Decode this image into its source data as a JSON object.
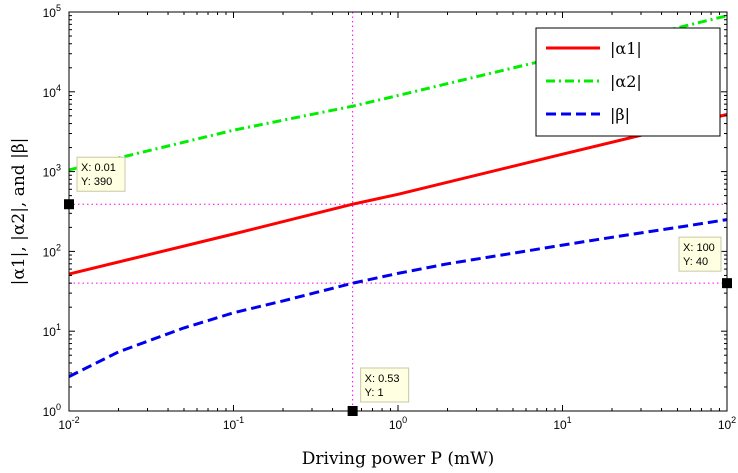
{
  "chart_data": {
    "type": "line",
    "xlabel": "Driving power P (mW)",
    "ylabel": "|α1|, |α2|, and |β|",
    "xscale": "log",
    "yscale": "log",
    "xlim": [
      0.01,
      100
    ],
    "ylim": [
      1,
      100000
    ],
    "x_ticks": [
      "10^-2",
      "10^-1",
      "10^0",
      "10^1",
      "10^2"
    ],
    "y_ticks": [
      "10^0",
      "10^1",
      "10^2",
      "10^3",
      "10^4",
      "10^5"
    ],
    "legend_position": "top-right",
    "series": [
      {
        "name": "|α1|",
        "color": "#ff0000",
        "style": "solid",
        "x": [
          0.01,
          0.1,
          0.53,
          1,
          10,
          100
        ],
        "y": [
          52,
          165,
          390,
          520,
          1650,
          5200
        ]
      },
      {
        "name": "|α2|",
        "color": "#00ee00",
        "style": "dash-dot",
        "x": [
          0.01,
          0.1,
          0.53,
          1,
          10,
          100
        ],
        "y": [
          1050,
          3300,
          6600,
          9000,
          28000,
          90000
        ]
      },
      {
        "name": "|β|",
        "color": "#0000ee",
        "style": "dashed",
        "x": [
          0.01,
          0.02,
          0.05,
          0.1,
          0.2,
          0.53,
          1,
          2,
          5,
          10,
          20,
          50,
          100
        ],
        "y": [
          2.7,
          5.5,
          11,
          17,
          24,
          40,
          53,
          70,
          95,
          120,
          150,
          200,
          250
        ]
      }
    ],
    "reference_lines": {
      "x": [
        0.53
      ],
      "y": [
        390,
        40
      ]
    },
    "datatips": [
      {
        "x": 0.01,
        "y": 390,
        "line1": "X: 0.01",
        "line2": "Y: 390"
      },
      {
        "x": 0.53,
        "y": 1,
        "line1": "X: 0.53",
        "line2": "Y: 1"
      },
      {
        "x": 100,
        "y": 40,
        "line1": "X: 100",
        "line2": "Y: 40"
      }
    ]
  }
}
